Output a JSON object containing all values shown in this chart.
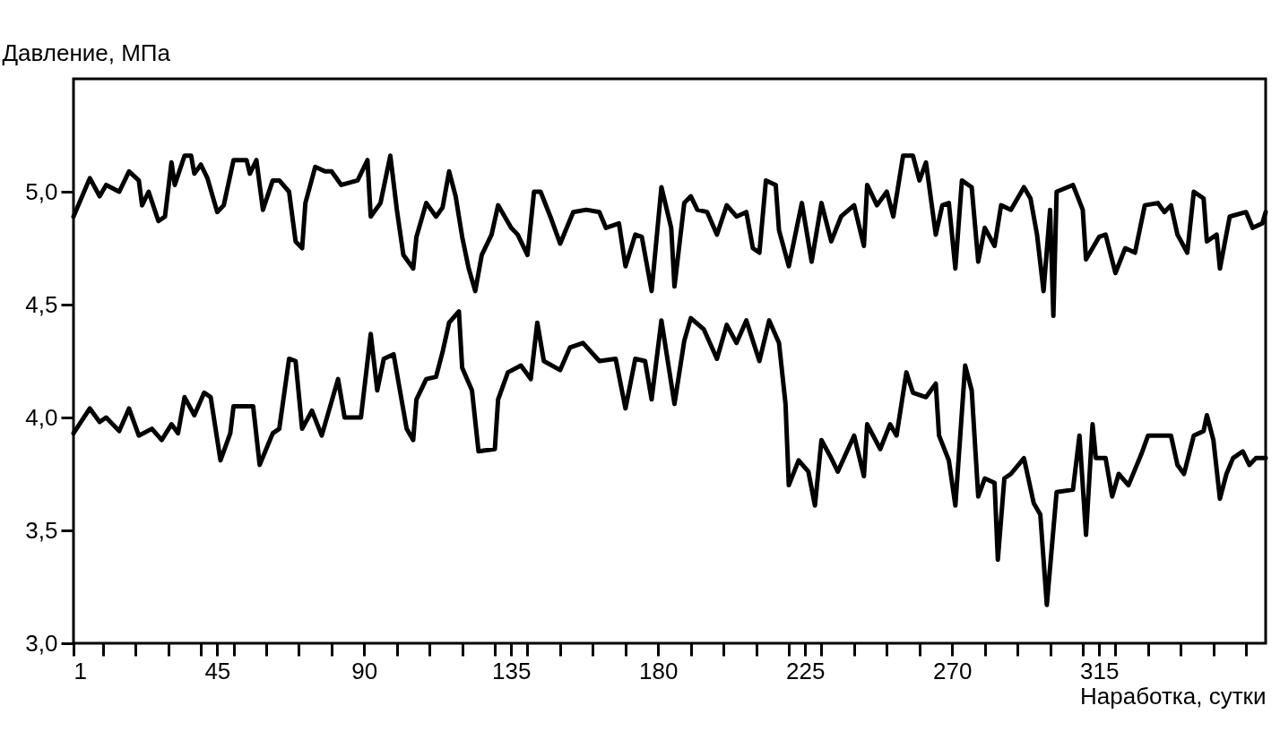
{
  "chart_data": {
    "type": "line",
    "xlabel": "Наработка, сутки",
    "ylabel": "Давление, МПа",
    "xlim": [
      1,
      366
    ],
    "ylim": [
      3,
      5.5
    ],
    "xticks": [
      1,
      {
        "value": 10,
        "label": null
      },
      {
        "value": 20,
        "label": null
      },
      {
        "value": 30,
        "label": null
      },
      {
        "value": 40,
        "label": null
      },
      45,
      {
        "value": 50,
        "label": null
      },
      {
        "value": 60,
        "label": null
      },
      {
        "value": 70,
        "label": null
      },
      {
        "value": 80,
        "label": null
      },
      90,
      {
        "value": 100,
        "label": null
      },
      {
        "value": 110,
        "label": null
      },
      {
        "value": 120,
        "label": null
      },
      {
        "value": 130,
        "label": null
      },
      135,
      {
        "value": 140,
        "label": null
      },
      {
        "value": 150,
        "label": null
      },
      {
        "value": 160,
        "label": null
      },
      {
        "value": 170,
        "label": null
      },
      180,
      {
        "value": 190,
        "label": null
      },
      {
        "value": 200,
        "label": null
      },
      {
        "value": 210,
        "label": null
      },
      {
        "value": 220,
        "label": null
      },
      225,
      {
        "value": 230,
        "label": null
      },
      {
        "value": 240,
        "label": null
      },
      {
        "value": 250,
        "label": null
      },
      {
        "value": 260,
        "label": null
      },
      270,
      {
        "value": 280,
        "label": null
      },
      {
        "value": 290,
        "label": null
      },
      {
        "value": 300,
        "label": null
      },
      {
        "value": 310,
        "label": null
      },
      315,
      {
        "value": 320,
        "label": null
      },
      {
        "value": 330,
        "label": null
      },
      {
        "value": 340,
        "label": null
      },
      {
        "value": 350,
        "label": null
      },
      {
        "value": 360,
        "label": null
      }
    ],
    "yticks": [
      {
        "value": 3,
        "label": "3,0"
      },
      {
        "value": 3.5,
        "label": "3,5"
      },
      {
        "value": 4,
        "label": "4,0"
      },
      {
        "value": 4.5,
        "label": "4,5"
      },
      {
        "value": 5,
        "label": "5,0"
      }
    ],
    "grid": false,
    "legend": false,
    "marker": "none",
    "line_style": "solid",
    "series": [
      {
        "color": "#000000",
        "x": [
          1,
          6,
          9,
          11,
          15,
          18,
          21,
          22,
          24,
          27,
          29,
          31,
          32,
          35,
          37,
          38,
          40,
          42,
          45,
          47,
          50,
          54,
          55,
          57,
          59,
          62,
          64,
          67,
          69,
          71,
          72,
          75,
          78,
          80,
          83,
          88,
          91,
          92,
          95,
          98,
          100,
          102,
          105,
          106,
          109,
          112,
          114,
          116,
          118,
          120,
          122,
          124,
          126,
          129,
          131,
          135,
          137,
          140,
          142,
          144,
          147,
          150,
          154,
          158,
          162,
          164,
          168,
          170,
          173,
          175,
          178,
          181,
          184,
          185,
          188,
          190,
          192,
          195,
          198,
          201,
          204,
          207,
          209,
          211,
          213,
          216,
          217,
          220,
          224,
          227,
          230,
          233,
          236,
          240,
          243,
          244,
          247,
          250,
          252,
          255,
          258,
          260,
          262,
          265,
          267,
          269,
          271,
          273,
          276,
          278,
          280,
          283,
          285,
          288,
          292,
          294,
          296,
          298,
          300,
          301,
          302,
          307,
          310,
          311,
          315,
          317,
          320,
          323,
          326,
          329,
          333,
          335,
          337,
          339,
          342,
          344,
          347,
          348,
          351,
          352,
          355,
          360,
          362,
          365,
          366
        ],
        "values": [
          4.89,
          5.06,
          4.98,
          5.03,
          5.0,
          5.09,
          5.05,
          4.94,
          5.0,
          4.87,
          4.89,
          5.13,
          5.03,
          5.16,
          5.16,
          5.08,
          5.12,
          5.06,
          4.91,
          4.94,
          5.14,
          5.14,
          5.08,
          5.14,
          4.92,
          5.05,
          5.05,
          5.0,
          4.78,
          4.75,
          4.95,
          5.11,
          5.09,
          5.09,
          5.03,
          5.05,
          5.14,
          4.89,
          4.95,
          5.16,
          4.92,
          4.72,
          4.66,
          4.8,
          4.95,
          4.89,
          4.93,
          5.09,
          4.98,
          4.8,
          4.66,
          4.56,
          4.72,
          4.81,
          4.94,
          4.84,
          4.81,
          4.72,
          5.0,
          5.0,
          4.89,
          4.77,
          4.91,
          4.92,
          4.91,
          4.84,
          4.86,
          4.67,
          4.81,
          4.8,
          4.56,
          5.02,
          4.84,
          4.58,
          4.95,
          4.98,
          4.92,
          4.91,
          4.81,
          4.94,
          4.89,
          4.91,
          4.75,
          4.73,
          5.05,
          5.03,
          4.83,
          4.67,
          4.95,
          4.69,
          4.95,
          4.78,
          4.89,
          4.94,
          4.76,
          5.03,
          4.94,
          5.0,
          4.89,
          5.16,
          5.16,
          5.05,
          5.13,
          4.81,
          4.94,
          4.95,
          4.66,
          5.05,
          5.02,
          4.69,
          4.84,
          4.76,
          4.94,
          4.92,
          5.02,
          4.97,
          4.81,
          4.56,
          4.92,
          4.45,
          5.0,
          5.03,
          4.92,
          4.7,
          4.8,
          4.81,
          4.64,
          4.75,
          4.73,
          4.94,
          4.95,
          4.91,
          4.94,
          4.81,
          4.73,
          5.0,
          4.97,
          4.78,
          4.81,
          4.66,
          4.89,
          4.91,
          4.84,
          4.86,
          4.91
        ]
      },
      {
        "color": "#000000",
        "x": [
          1,
          6,
          9,
          11,
          15,
          18,
          21,
          25,
          28,
          31,
          33,
          35,
          38,
          41,
          43,
          46,
          49,
          50,
          56,
          58,
          62,
          64,
          67,
          69,
          71,
          74,
          77,
          82,
          84,
          89,
          92,
          94,
          96,
          99,
          103,
          105,
          106,
          109,
          112,
          114,
          116,
          119,
          120,
          123,
          125,
          130,
          131,
          134,
          138,
          141,
          143,
          145,
          150,
          153,
          157,
          162,
          167,
          170,
          173,
          176,
          178,
          181,
          185,
          188,
          190,
          194,
          198,
          201,
          204,
          207,
          211,
          214,
          217,
          219,
          220,
          223,
          226,
          228,
          230,
          233,
          235,
          240,
          243,
          244,
          248,
          251,
          253,
          256,
          258,
          262,
          265,
          266,
          269,
          271,
          274,
          276,
          278,
          280,
          283,
          284,
          286,
          288,
          292,
          295,
          297,
          299,
          302,
          307,
          309,
          311,
          313,
          314,
          317,
          319,
          321,
          324,
          328,
          330,
          337,
          339,
          341,
          344,
          347,
          348,
          350,
          352,
          354,
          356,
          359,
          361,
          363,
          366
        ],
        "values": [
          3.93,
          4.04,
          3.98,
          4.0,
          3.94,
          4.04,
          3.92,
          3.95,
          3.9,
          3.97,
          3.93,
          4.09,
          4.01,
          4.11,
          4.09,
          3.81,
          3.93,
          4.05,
          4.05,
          3.79,
          3.93,
          3.95,
          4.26,
          4.25,
          3.95,
          4.03,
          3.92,
          4.17,
          4.0,
          4.0,
          4.37,
          4.12,
          4.26,
          4.28,
          3.95,
          3.9,
          4.08,
          4.17,
          4.18,
          4.29,
          4.42,
          4.47,
          4.22,
          4.12,
          3.85,
          3.86,
          4.08,
          4.2,
          4.23,
          4.17,
          4.42,
          4.25,
          4.21,
          4.31,
          4.33,
          4.25,
          4.26,
          4.04,
          4.26,
          4.25,
          4.08,
          4.43,
          4.06,
          4.34,
          4.44,
          4.39,
          4.26,
          4.41,
          4.33,
          4.43,
          4.25,
          4.43,
          4.33,
          4.06,
          3.7,
          3.81,
          3.76,
          3.61,
          3.9,
          3.82,
          3.76,
          3.92,
          3.74,
          3.97,
          3.86,
          3.97,
          3.92,
          4.2,
          4.11,
          4.09,
          4.15,
          3.92,
          3.81,
          3.61,
          4.23,
          4.12,
          3.65,
          3.73,
          3.71,
          3.37,
          3.73,
          3.75,
          3.82,
          3.62,
          3.57,
          3.17,
          3.67,
          3.68,
          3.92,
          3.48,
          3.97,
          3.82,
          3.82,
          3.65,
          3.75,
          3.7,
          3.84,
          3.92,
          3.92,
          3.79,
          3.75,
          3.92,
          3.94,
          4.01,
          3.9,
          3.64,
          3.75,
          3.82,
          3.85,
          3.79,
          3.82,
          3.82
        ]
      }
    ]
  }
}
